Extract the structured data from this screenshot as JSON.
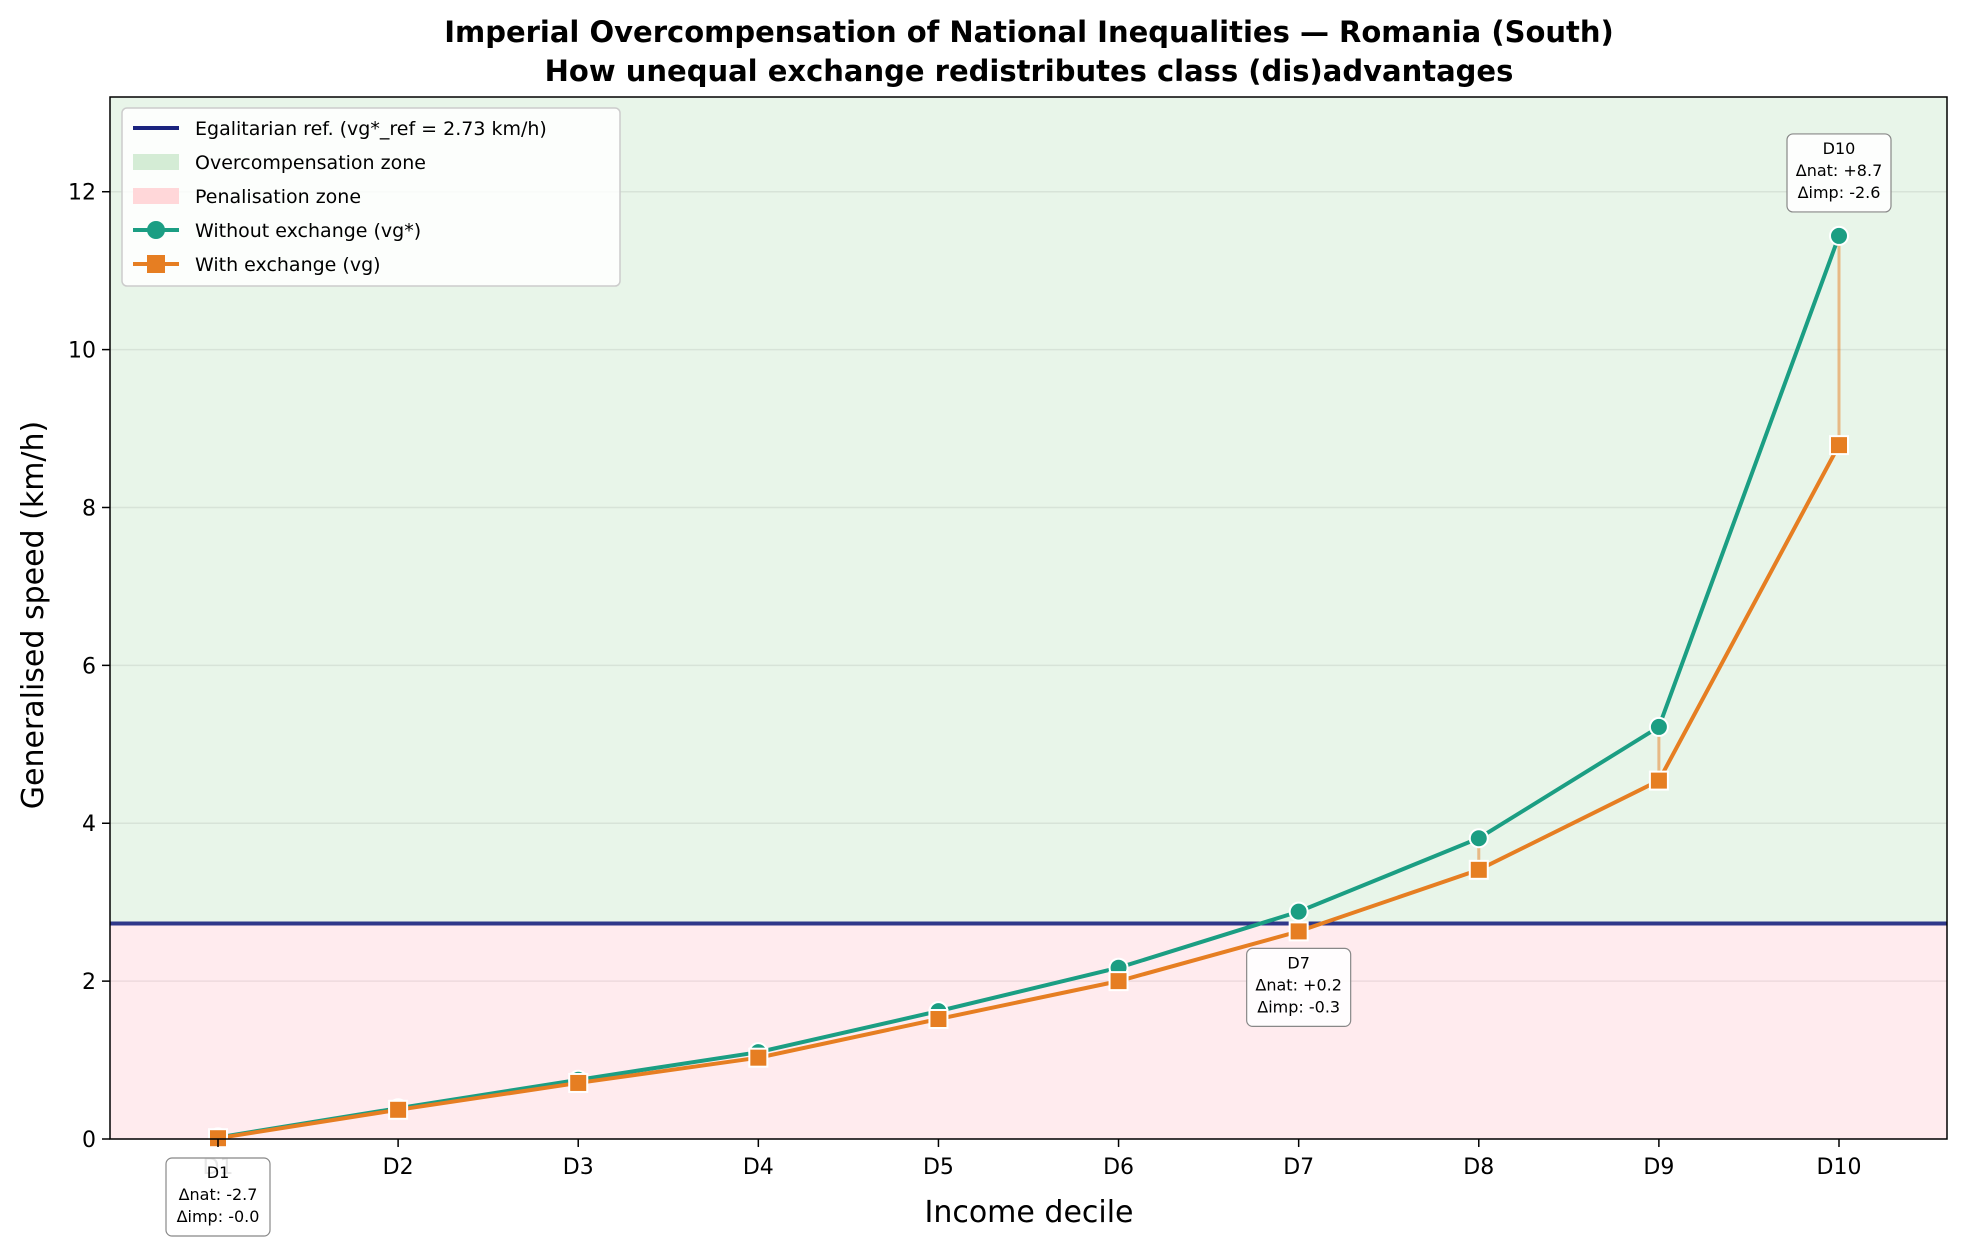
{
  "chart_data": {
    "type": "line",
    "title": "Imperial Overcompensation of National Inequalities — Romania (South)",
    "subtitle": "How unequal exchange redistributes class (dis)advantages",
    "xlabel": "Income decile",
    "ylabel": "Generalised speed (km/h)",
    "categories": [
      "D1",
      "D2",
      "D3",
      "D4",
      "D5",
      "D6",
      "D7",
      "D8",
      "D9",
      "D10"
    ],
    "ylim": [
      0,
      13.2
    ],
    "yticks": [
      0,
      2,
      4,
      6,
      8,
      10,
      12
    ],
    "grid": "horizontal",
    "legend_position": "top-left",
    "reference": {
      "value": 2.73,
      "label": "Egalitarian ref. (vg*_ref = 2.73 km/h)",
      "color": "#1a237e"
    },
    "zones": [
      {
        "name": "Overcompensation zone",
        "range": "above-reference",
        "color": "#e8f5e9",
        "legend_color": "#d4ecd5"
      },
      {
        "name": "Penalisation zone",
        "range": "below-reference",
        "color": "#ffebee",
        "legend_color": "#ffd7d9"
      }
    ],
    "series": [
      {
        "name": "Without exchange (vg*)",
        "marker": "circle",
        "color": "#1b9e83",
        "values": [
          0.02,
          0.39,
          0.75,
          1.1,
          1.62,
          2.17,
          2.88,
          3.81,
          5.22,
          11.44
        ]
      },
      {
        "name": "With exchange (vg)",
        "marker": "square",
        "color": "#e67e22",
        "values": [
          0.01,
          0.37,
          0.71,
          1.03,
          1.52,
          2.0,
          2.63,
          3.41,
          4.54,
          8.79
        ]
      }
    ],
    "annotations": [
      {
        "decile": "D1",
        "lines": [
          "D1",
          "Δnat: -2.7",
          "Δimp: -0.0"
        ],
        "position": "below-axis"
      },
      {
        "decile": "D7",
        "lines": [
          "D7",
          "Δnat: +0.2",
          "Δimp: -0.3"
        ],
        "position": "below"
      },
      {
        "decile": "D10",
        "lines": [
          "D10",
          "Δnat: +8.7",
          "Δimp: -2.6"
        ],
        "position": "above"
      }
    ]
  }
}
